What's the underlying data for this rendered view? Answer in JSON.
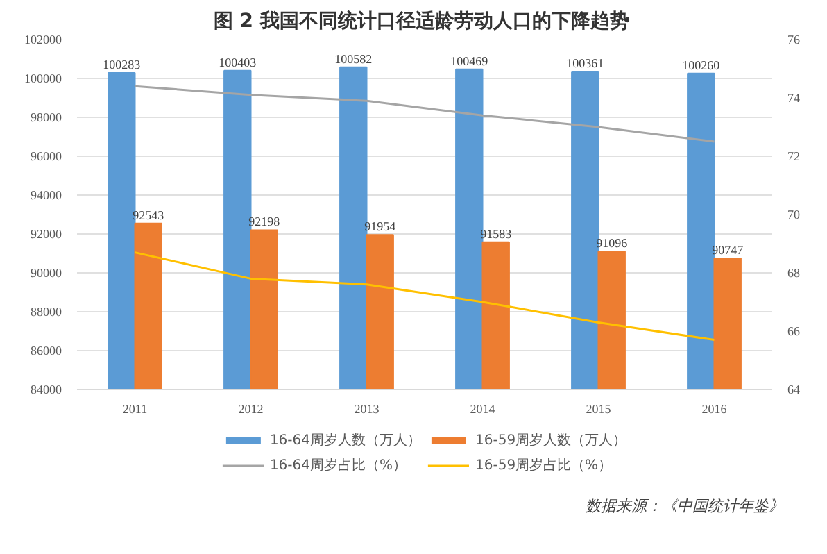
{
  "chart_data": {
    "type": "bar",
    "title": "图 2  我国不同统计口径适龄劳动人口的下降趋势",
    "categories": [
      "2011",
      "2012",
      "2013",
      "2014",
      "2015",
      "2016"
    ],
    "series": [
      {
        "name": "16-64周岁人数（万人）",
        "color": "#5b9bd5",
        "values": [
          100283,
          100403,
          100582,
          100469,
          100361,
          100260
        ],
        "value_labels": [
          "100283",
          "100403",
          "100582",
          "100469",
          "100361",
          "100260"
        ]
      },
      {
        "name": "16-59周岁人数（万人）",
        "color": "#ed7d31",
        "values": [
          92543,
          92198,
          91954,
          91583,
          91096,
          90747
        ],
        "value_labels": [
          "92543",
          "92198",
          "91954",
          "91583",
          "91096",
          "90747"
        ]
      },
      {
        "name": "16-64周岁占比（%）",
        "type": "line",
        "axis": "y2",
        "color": "#a5a5a5",
        "values": [
          74.4,
          74.1,
          73.9,
          73.4,
          73.0,
          72.5
        ]
      },
      {
        "name": "16-59周岁占比（%）",
        "type": "line",
        "axis": "y2",
        "color": "#ffc000",
        "values": [
          68.7,
          67.8,
          67.6,
          67.0,
          66.3,
          65.7
        ]
      }
    ],
    "ylim": [
      84000,
      102000
    ],
    "yticks": [
      84000,
      86000,
      88000,
      90000,
      92000,
      94000,
      96000,
      98000,
      100000,
      102000
    ],
    "y2lim": [
      64,
      76
    ],
    "y2ticks": [
      64,
      66,
      68,
      70,
      72,
      74,
      76
    ],
    "grid": "y",
    "legend": "bottom",
    "annotations": [
      "数据来源：《中国统计年鉴》"
    ]
  }
}
